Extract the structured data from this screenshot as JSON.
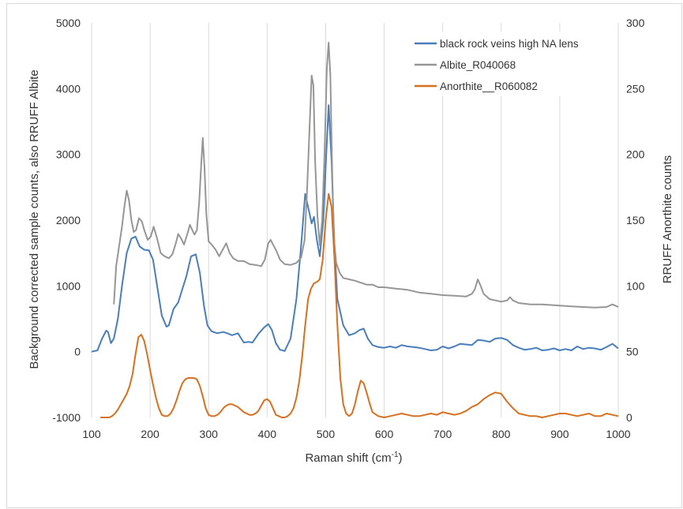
{
  "chart_data": {
    "type": "line",
    "xlabel": "Raman shift (cm",
    "xlabel_sup": "-1",
    "xlabel_end": ")",
    "ylabel": "Background corrected sample counts, also RRUFF Albite",
    "y2label": "RRUFF Anorthite counts",
    "xlim": [
      100,
      1000
    ],
    "ylim": [
      -1000,
      5000
    ],
    "y2lim": [
      0,
      300
    ],
    "x_ticks": [
      "100",
      "200",
      "300",
      "400",
      "500",
      "600",
      "700",
      "800",
      "900",
      "1000"
    ],
    "y_ticks": [
      "-1000",
      "0",
      "1000",
      "2000",
      "3000",
      "4000",
      "5000"
    ],
    "y2_ticks": [
      "0",
      "50",
      "100",
      "150",
      "200",
      "250",
      "300"
    ],
    "grid": "vertical",
    "legend_position": "top-right",
    "series": [
      {
        "name": "black rock veins high NA lens",
        "axis": "left",
        "color": "#4a7ebb",
        "x": [
          100,
          110,
          118,
          125,
          128,
          133,
          138,
          145,
          152,
          160,
          168,
          175,
          182,
          190,
          198,
          205,
          212,
          220,
          228,
          232,
          240,
          248,
          255,
          262,
          270,
          278,
          285,
          292,
          298,
          305,
          315,
          325,
          332,
          340,
          350,
          360,
          368,
          375,
          385,
          395,
          402,
          408,
          415,
          422,
          430,
          440,
          450,
          458,
          465,
          470,
          476,
          480,
          485,
          490,
          496,
          500,
          505,
          510,
          515,
          520,
          530,
          540,
          550,
          558,
          565,
          572,
          580,
          590,
          600,
          610,
          620,
          630,
          640,
          650,
          660,
          670,
          680,
          690,
          700,
          710,
          720,
          730,
          740,
          750,
          760,
          770,
          780,
          790,
          800,
          810,
          820,
          830,
          840,
          850,
          860,
          870,
          880,
          890,
          900,
          910,
          920,
          930,
          940,
          950,
          960,
          970,
          980,
          990,
          1000
        ],
        "y": [
          0,
          20,
          200,
          320,
          300,
          130,
          200,
          500,
          1000,
          1500,
          1720,
          1750,
          1600,
          1550,
          1540,
          1400,
          1000,
          550,
          380,
          400,
          650,
          750,
          950,
          1150,
          1450,
          1480,
          1200,
          700,
          400,
          310,
          280,
          300,
          280,
          250,
          280,
          140,
          150,
          140,
          270,
          370,
          420,
          330,
          130,
          30,
          10,
          200,
          800,
          1600,
          2400,
          2200,
          1950,
          2050,
          1700,
          1450,
          2000,
          2800,
          3750,
          2900,
          1600,
          800,
          400,
          250,
          280,
          330,
          350,
          200,
          100,
          70,
          60,
          80,
          60,
          100,
          80,
          70,
          60,
          40,
          20,
          30,
          80,
          50,
          80,
          120,
          110,
          100,
          180,
          170,
          150,
          200,
          210,
          180,
          100,
          60,
          30,
          40,
          60,
          20,
          30,
          50,
          20,
          40,
          20,
          80,
          40,
          60,
          50,
          30,
          70,
          120,
          50
        ]
      },
      {
        "name": "Albite_R040068",
        "axis": "left",
        "color": "#969696",
        "x": [
          138,
          142,
          147,
          152,
          156,
          160,
          164,
          168,
          172,
          176,
          181,
          186,
          190,
          196,
          201,
          206,
          212,
          218,
          225,
          232,
          238,
          244,
          248,
          253,
          258,
          264,
          268,
          272,
          276,
          280,
          284,
          287,
          290,
          293,
          296,
          300,
          306,
          312,
          318,
          324,
          330,
          336,
          342,
          350,
          360,
          370,
          380,
          390,
          396,
          402,
          406,
          410,
          416,
          422,
          430,
          440,
          450,
          458,
          464,
          468,
          472,
          476,
          479,
          482,
          486,
          490,
          494,
          498,
          502,
          505,
          508,
          511,
          514,
          518,
          524,
          530,
          540,
          550,
          560,
          570,
          580,
          590,
          600,
          620,
          640,
          660,
          680,
          700,
          720,
          740,
          750,
          755,
          760,
          765,
          770,
          780,
          790,
          800,
          810,
          815,
          820,
          830,
          850,
          870,
          900,
          920,
          940,
          960,
          980,
          990,
          1000
        ],
        "y": [
          720,
          1300,
          1600,
          1900,
          2200,
          2450,
          2300,
          2000,
          1820,
          1850,
          2030,
          1980,
          1850,
          1700,
          1750,
          1900,
          1720,
          1500,
          1450,
          1420,
          1480,
          1650,
          1790,
          1720,
          1630,
          1800,
          1930,
          1850,
          1780,
          1850,
          2300,
          2800,
          3250,
          2800,
          2100,
          1680,
          1620,
          1550,
          1450,
          1550,
          1650,
          1500,
          1420,
          1380,
          1380,
          1330,
          1320,
          1300,
          1400,
          1650,
          1700,
          1630,
          1530,
          1400,
          1330,
          1320,
          1350,
          1430,
          1700,
          2400,
          3300,
          4200,
          4050,
          2900,
          2050,
          1620,
          2000,
          3000,
          4300,
          4700,
          4200,
          2800,
          1750,
          1350,
          1200,
          1120,
          1100,
          1080,
          1050,
          1020,
          1020,
          980,
          980,
          960,
          940,
          900,
          880,
          860,
          850,
          840,
          880,
          950,
          1100,
          1000,
          880,
          800,
          780,
          760,
          780,
          830,
          780,
          740,
          720,
          720,
          700,
          690,
          680,
          670,
          680,
          720,
          680
        ]
      },
      {
        "name": "Anorthite__R060082",
        "axis": "right",
        "color": "#d8701f",
        "x": [
          115,
          120,
          125,
          130,
          135,
          140,
          145,
          150,
          155,
          160,
          165,
          170,
          175,
          180,
          185,
          190,
          195,
          200,
          205,
          210,
          215,
          220,
          225,
          230,
          235,
          240,
          245,
          250,
          255,
          260,
          265,
          270,
          275,
          280,
          285,
          290,
          295,
          300,
          305,
          310,
          315,
          320,
          325,
          330,
          335,
          340,
          345,
          350,
          355,
          360,
          365,
          370,
          375,
          380,
          385,
          390,
          395,
          400,
          405,
          410,
          415,
          420,
          425,
          430,
          435,
          440,
          445,
          450,
          455,
          460,
          465,
          470,
          475,
          480,
          485,
          490,
          495,
          500,
          505,
          510,
          515,
          520,
          525,
          530,
          535,
          540,
          545,
          550,
          555,
          560,
          565,
          570,
          575,
          580,
          590,
          600,
          610,
          620,
          630,
          640,
          650,
          660,
          670,
          680,
          690,
          700,
          710,
          720,
          730,
          740,
          750,
          760,
          770,
          780,
          790,
          800,
          810,
          820,
          830,
          840,
          850,
          860,
          870,
          880,
          890,
          900,
          910,
          920,
          930,
          940,
          950,
          960,
          970,
          980,
          990,
          1000
        ],
        "y": [
          0,
          0,
          0,
          0,
          1,
          3,
          6,
          10,
          14,
          18,
          24,
          33,
          48,
          61,
          63,
          58,
          48,
          36,
          25,
          15,
          7,
          2,
          1,
          1,
          3,
          7,
          13,
          20,
          26,
          29,
          30,
          30,
          30,
          29,
          24,
          16,
          7,
          2,
          1,
          1,
          2,
          4,
          7,
          9,
          10,
          10,
          9,
          8,
          6,
          4,
          3,
          2,
          2,
          3,
          5,
          9,
          13,
          14,
          12,
          7,
          2,
          1,
          0,
          0,
          1,
          3,
          7,
          15,
          28,
          47,
          70,
          90,
          98,
          102,
          103,
          105,
          120,
          150,
          170,
          160,
          120,
          70,
          30,
          10,
          3,
          1,
          3,
          10,
          20,
          28,
          26,
          19,
          11,
          4,
          1,
          0,
          1,
          2,
          3,
          2,
          1,
          1,
          2,
          3,
          2,
          4,
          3,
          2,
          3,
          5,
          8,
          10,
          14,
          17,
          19,
          18,
          12,
          7,
          3,
          2,
          1,
          1,
          0,
          1,
          2,
          3,
          3,
          2,
          1,
          2,
          3,
          1,
          1,
          3,
          2,
          1
        ]
      }
    ]
  }
}
